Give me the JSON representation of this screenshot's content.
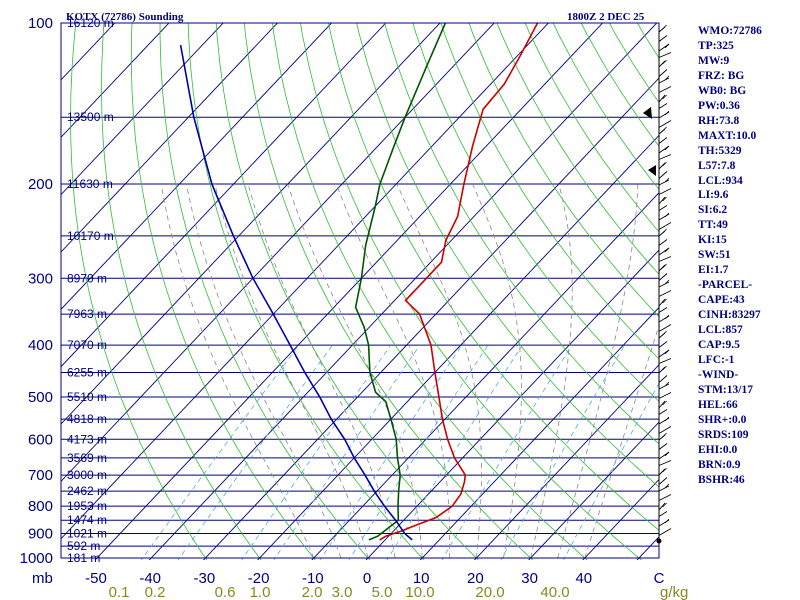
{
  "title_left": "KOTX (72786) Sounding",
  "title_right": "1800Z  2 DEC 25",
  "chart_data": {
    "type": "line",
    "xlabel": "",
    "ylabel": "mb",
    "x_unit": "C",
    "mixing_ratio_unit": "g/kg",
    "pressure_levels": [
      100,
      200,
      300,
      400,
      500,
      600,
      700,
      800,
      900,
      1000
    ],
    "temperature_ticks": [
      -50,
      -40,
      -30,
      -20,
      -10,
      0,
      10,
      20,
      30,
      40
    ],
    "mixing_ratio_ticks": [
      "0.1",
      "0.2",
      "0.6",
      "1.0",
      "2.0",
      "3.0",
      "5.0",
      "10.0",
      "20.0",
      "40.0"
    ],
    "height_labels": [
      {
        "p": 100,
        "label": "16120 m"
      },
      {
        "p": 150,
        "label": "13500 m"
      },
      {
        "p": 200,
        "label": "11630 m"
      },
      {
        "p": 250,
        "label": "10170 m"
      },
      {
        "p": 300,
        "label": "8970 m"
      },
      {
        "p": 350,
        "label": "7963 m"
      },
      {
        "p": 400,
        "label": "7070 m"
      },
      {
        "p": 450,
        "label": "6255 m"
      },
      {
        "p": 500,
        "label": "5510 m"
      },
      {
        "p": 550,
        "label": "4818 m"
      },
      {
        "p": 600,
        "label": "4173 m"
      },
      {
        "p": 650,
        "label": "3569 m"
      },
      {
        "p": 700,
        "label": "3000 m"
      },
      {
        "p": 750,
        "label": "2462 m"
      },
      {
        "p": 800,
        "label": "1953 m"
      },
      {
        "p": 850,
        "label": "1474 m"
      },
      {
        "p": 900,
        "label": "1021 m"
      },
      {
        "p": 950,
        "label": "592 m"
      },
      {
        "p": 1000,
        "label": "181 m"
      }
    ],
    "series": [
      {
        "name": "",
        "color": "#cc0000",
        "points": [
          {
            "p": 925,
            "t": -1.0
          },
          {
            "p": 910,
            "t": -0.5
          },
          {
            "p": 890,
            "t": 1.5
          },
          {
            "p": 870,
            "t": 3.0
          },
          {
            "p": 840,
            "t": 5.5
          },
          {
            "p": 800,
            "t": 6.5
          },
          {
            "p": 760,
            "t": 6.0
          },
          {
            "p": 720,
            "t": 4.5
          },
          {
            "p": 700,
            "t": 3.5
          },
          {
            "p": 650,
            "t": -1.5
          },
          {
            "p": 600,
            "t": -6.0
          },
          {
            "p": 550,
            "t": -10.5
          },
          {
            "p": 500,
            "t": -15.0
          },
          {
            "p": 450,
            "t": -20.0
          },
          {
            "p": 400,
            "t": -25.5
          },
          {
            "p": 350,
            "t": -33.0
          },
          {
            "p": 330,
            "t": -38.0
          },
          {
            "p": 310,
            "t": -38.0
          },
          {
            "p": 280,
            "t": -38.0
          },
          {
            "p": 255,
            "t": -41.0
          },
          {
            "p": 230,
            "t": -43.0
          },
          {
            "p": 200,
            "t": -47.5
          },
          {
            "p": 170,
            "t": -52.5
          },
          {
            "p": 145,
            "t": -57.0
          },
          {
            "p": 130,
            "t": -57.5
          },
          {
            "p": 115,
            "t": -59.5
          },
          {
            "p": 100,
            "t": -62.0
          }
        ]
      },
      {
        "name": "",
        "color": "#005500",
        "points": [
          {
            "p": 925,
            "t": -3.0
          },
          {
            "p": 910,
            "t": -2.0
          },
          {
            "p": 880,
            "t": -1.5
          },
          {
            "p": 850,
            "t": -1.0
          },
          {
            "p": 800,
            "t": -3.5
          },
          {
            "p": 750,
            "t": -6.0
          },
          {
            "p": 700,
            "t": -8.5
          },
          {
            "p": 650,
            "t": -12.0
          },
          {
            "p": 600,
            "t": -15.5
          },
          {
            "p": 550,
            "t": -20.0
          },
          {
            "p": 510,
            "t": -24.0
          },
          {
            "p": 490,
            "t": -27.5
          },
          {
            "p": 450,
            "t": -32.0
          },
          {
            "p": 400,
            "t": -37.0
          },
          {
            "p": 370,
            "t": -41.0
          },
          {
            "p": 340,
            "t": -46.0
          },
          {
            "p": 300,
            "t": -50.0
          },
          {
            "p": 260,
            "t": -55.0
          },
          {
            "p": 220,
            "t": -60.0
          },
          {
            "p": 200,
            "t": -63.0
          },
          {
            "p": 170,
            "t": -67.0
          },
          {
            "p": 150,
            "t": -70.0
          },
          {
            "p": 120,
            "t": -75.0
          },
          {
            "p": 100,
            "t": -79.0
          }
        ]
      },
      {
        "name": "",
        "color": "#0000aa",
        "points": [
          {
            "p": 925,
            "t": 5.0
          },
          {
            "p": 900,
            "t": 2.5
          },
          {
            "p": 850,
            "t": -1.5
          },
          {
            "p": 800,
            "t": -6.0
          },
          {
            "p": 750,
            "t": -10.5
          },
          {
            "p": 700,
            "t": -15.0
          },
          {
            "p": 650,
            "t": -20.0
          },
          {
            "p": 600,
            "t": -25.0
          },
          {
            "p": 550,
            "t": -31.0
          },
          {
            "p": 500,
            "t": -37.0
          },
          {
            "p": 450,
            "t": -44.0
          },
          {
            "p": 400,
            "t": -51.5
          },
          {
            "p": 350,
            "t": -60.0
          },
          {
            "p": 300,
            "t": -70.0
          },
          {
            "p": 250,
            "t": -81.0
          },
          {
            "p": 200,
            "t": -94.0
          },
          {
            "p": 150,
            "t": -109.0
          },
          {
            "p": 110,
            "t": -124.0
          }
        ]
      }
    ]
  },
  "indices": [
    "WMO:72786",
    "TP:325",
    "MW:9",
    "FRZ: BG",
    "WB0: BG",
    "PW:0.36",
    "RH:73.8",
    "MAXT:10.0",
    "TH:5329",
    "L57:7.8",
    "LCL:934",
    "LI:9.6",
    "SI:6.2",
    "TT:49",
    "KI:15",
    "SW:51",
    "EI:1.7",
    "-PARCEL-",
    "CAPE:43",
    "CINH:83297",
    "LCL:857",
    "CAP:9.5",
    "LFC:-1",
    "-WIND-",
    "STM:13/17",
    "HEL:66",
    "SHR+:0.0",
    "SRDS:109",
    "EHI:0.0",
    "BRN:0.9",
    "BSHR:46"
  ]
}
